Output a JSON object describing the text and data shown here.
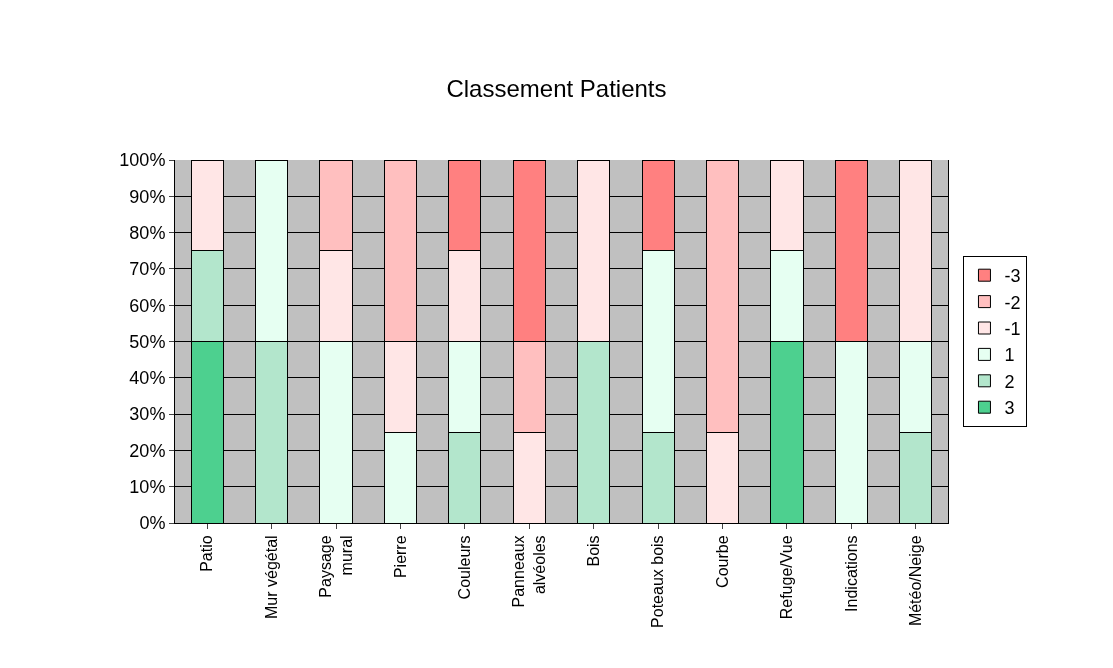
{
  "chart_data": {
    "type": "bar",
    "title": "Classement Patients",
    "stacked": true,
    "categories": [
      "Patio",
      "Mur végétal",
      "Paysage mural",
      "Pierre",
      "Couleurs",
      "Panneaux alvéoles",
      "Bois",
      "Poteaux bois",
      "Courbe",
      "Refuge/Vue",
      "Indications",
      "Météo/Neige"
    ],
    "series": [
      {
        "name": "3",
        "color": "#4dd08f",
        "values": [
          50,
          null,
          null,
          null,
          null,
          null,
          null,
          null,
          null,
          50,
          null,
          null
        ]
      },
      {
        "name": "2",
        "color": "#b3e6cc",
        "values": [
          25,
          50,
          null,
          null,
          25,
          null,
          50,
          25,
          null,
          null,
          null,
          25
        ]
      },
      {
        "name": "1",
        "color": "#e6fff2",
        "values": [
          null,
          50,
          50,
          25,
          25,
          null,
          null,
          50,
          null,
          25,
          50,
          25
        ]
      },
      {
        "name": "-1",
        "color": "#ffe6e6",
        "values": [
          25,
          null,
          25,
          25,
          25,
          25,
          50,
          null,
          25,
          25,
          null,
          50
        ]
      },
      {
        "name": "-2",
        "color": "#ffbfbf",
        "values": [
          null,
          null,
          25,
          50,
          null,
          25,
          null,
          null,
          75,
          null,
          null,
          null
        ]
      },
      {
        "name": "-3",
        "color": "#ff8080",
        "values": [
          null,
          null,
          null,
          null,
          25,
          50,
          null,
          25,
          null,
          null,
          50,
          null
        ]
      }
    ],
    "ylim": [
      0,
      100
    ],
    "yticks": [
      {
        "value": 0,
        "label": "0%"
      },
      {
        "value": 10,
        "label": "10%"
      },
      {
        "value": 20,
        "label": "20%"
      },
      {
        "value": 30,
        "label": "30%"
      },
      {
        "value": 40,
        "label": "40%"
      },
      {
        "value": 50,
        "label": "50%"
      },
      {
        "value": 60,
        "label": "60%"
      },
      {
        "value": 70,
        "label": "70%"
      },
      {
        "value": 80,
        "label": "80%"
      },
      {
        "value": 90,
        "label": "90%"
      },
      {
        "value": 100,
        "label": "100%"
      }
    ],
    "grid": "y",
    "legend": "right"
  }
}
